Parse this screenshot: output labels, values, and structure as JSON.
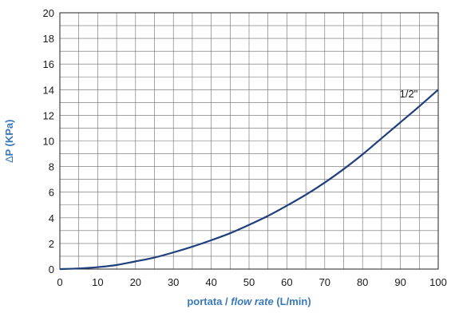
{
  "chart_data": {
    "type": "line",
    "xlabel_parts": [
      "portata / ",
      "flow rate",
      " (L/min)"
    ],
    "ylabel_delta": "∆",
    "ylabel_rest": "P  (KPa)",
    "xlim": [
      0,
      100
    ],
    "ylim": [
      0,
      20
    ],
    "x_ticks": [
      0,
      10,
      20,
      30,
      40,
      50,
      60,
      70,
      80,
      90,
      100
    ],
    "y_ticks": [
      0,
      2,
      4,
      6,
      8,
      10,
      12,
      14,
      16,
      18,
      20
    ],
    "minor_grid_x": 5,
    "minor_grid_y": 1,
    "grid": true,
    "colors": {
      "series": "#1f3f7d",
      "axis_title": "#3a79b9",
      "grid": "#6b6b6b"
    },
    "series": [
      {
        "name": "1/2\"",
        "x": [
          0,
          5,
          10,
          15,
          20,
          25,
          30,
          35,
          40,
          45,
          50,
          55,
          60,
          65,
          70,
          75,
          80,
          85,
          90,
          95,
          100
        ],
        "y": [
          0,
          0.05,
          0.15,
          0.32,
          0.6,
          0.9,
          1.3,
          1.75,
          2.25,
          2.8,
          3.45,
          4.15,
          4.95,
          5.8,
          6.75,
          7.8,
          8.95,
          10.2,
          11.45,
          12.7,
          14.0
        ]
      }
    ]
  }
}
